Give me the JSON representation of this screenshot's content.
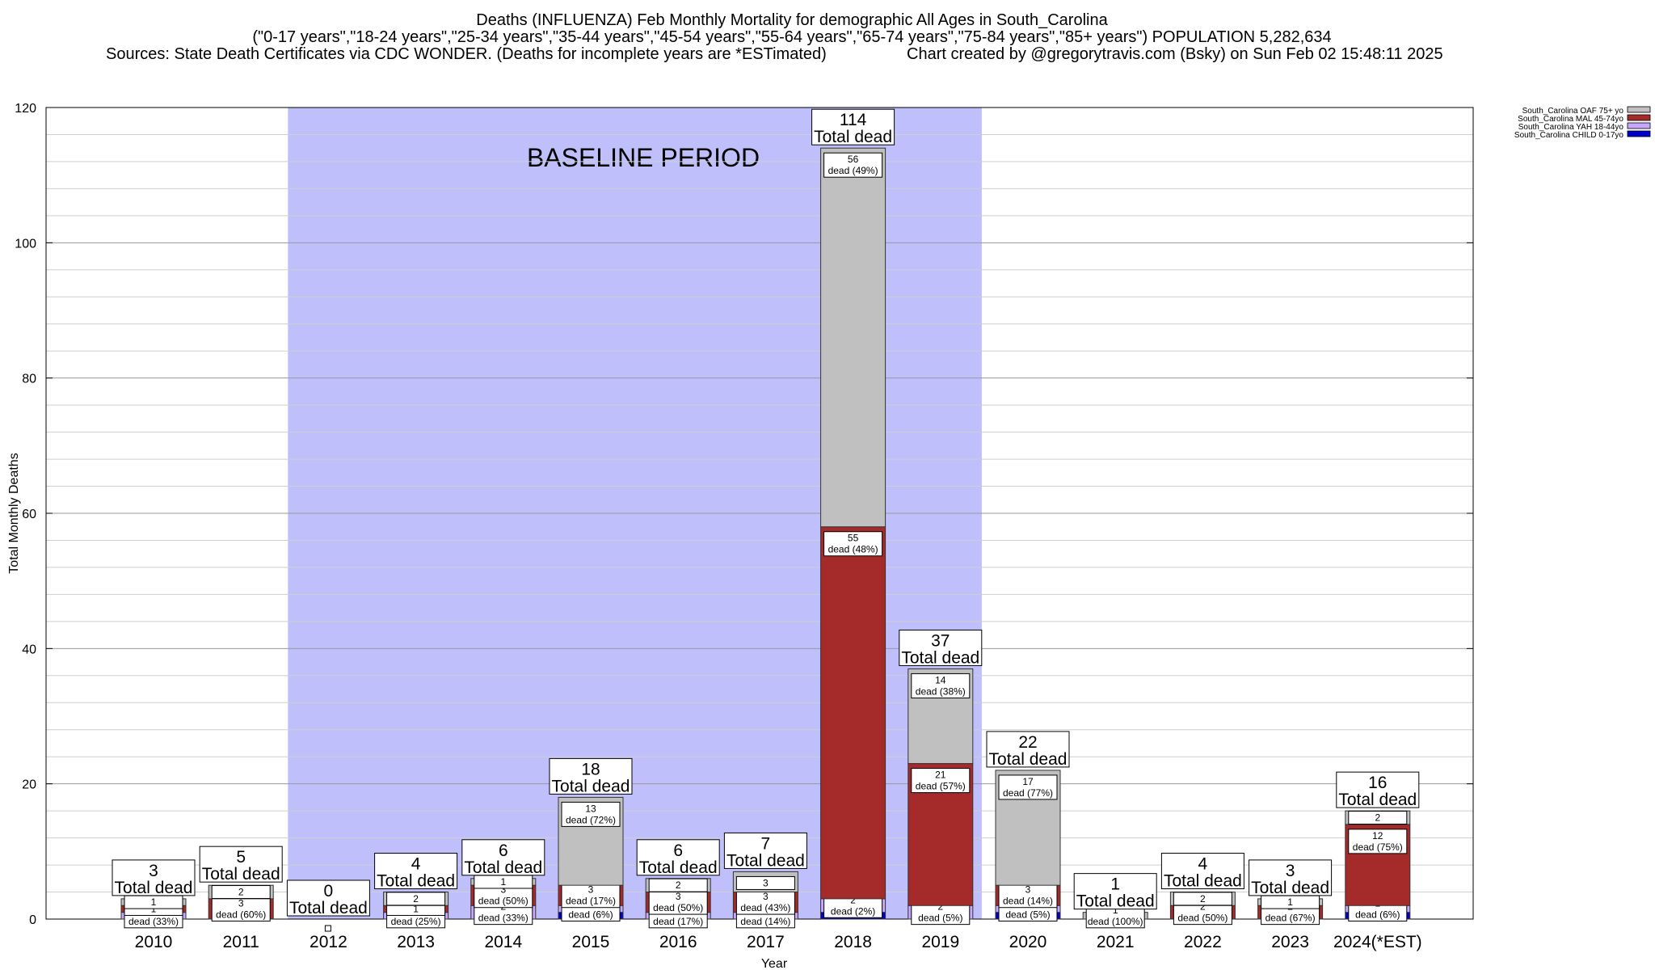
{
  "header": {
    "line1": "Deaths (INFLUENZA) Feb Monthly Mortality for demographic All Ages in South_Carolina",
    "line2": "(\"0-17 years\",\"18-24 years\",\"25-34 years\",\"35-44 years\",\"45-54 years\",\"55-64 years\",\"65-74 years\",\"75-84 years\",\"85+ years\") POPULATION 5,282,634",
    "line3_left": "Sources: State Death Certificates via CDC WONDER. (Deaths for incomplete years are *ESTimated)",
    "line3_right": "Chart created by @gregorytravis.com (Bsky) on Sun Feb 02 15:48:11 2025"
  },
  "chart_data": {
    "type": "bar",
    "stacked": true,
    "xlabel": "Year",
    "ylabel": "Total Monthly Deaths",
    "ylim": [
      0,
      120
    ],
    "yticks": [
      0,
      20,
      40,
      60,
      80,
      100,
      120
    ],
    "grid": true,
    "legend_position": "top-right",
    "baseline": {
      "label": "BASELINE PERIOD",
      "from": "2012",
      "to": "2019"
    },
    "total_label": "Total dead",
    "dead_word": "dead",
    "categories": [
      "2010",
      "2011",
      "2012",
      "2013",
      "2014",
      "2015",
      "2016",
      "2017",
      "2018",
      "2019",
      "2020",
      "2021",
      "2022",
      "2023",
      "2024(*EST)"
    ],
    "totals": [
      3,
      5,
      0,
      4,
      6,
      18,
      6,
      7,
      114,
      37,
      22,
      1,
      4,
      3,
      16
    ],
    "series": [
      {
        "name": "South_Carolina OAF 75+ yo",
        "color": "#c0c0c0",
        "values": [
          1,
          2,
          0,
          2,
          1,
          13,
          2,
          3,
          56,
          14,
          17,
          1,
          2,
          1,
          2
        ],
        "pct": [
          null,
          null,
          null,
          null,
          null,
          "72%",
          null,
          null,
          "49%",
          "38%",
          "77%",
          "100%",
          null,
          null,
          null
        ]
      },
      {
        "name": "South_Carolina MAL 45-74yo",
        "color": "#a52a2a",
        "values": [
          1,
          3,
          0,
          1,
          3,
          3,
          3,
          3,
          55,
          21,
          3,
          0,
          2,
          2,
          12
        ],
        "pct": [
          null,
          "60%",
          null,
          null,
          "50%",
          "17%",
          "50%",
          "43%",
          "48%",
          "57%",
          "14%",
          null,
          "50%",
          "67%",
          "75%"
        ]
      },
      {
        "name": "South_Carolina YAH 18-44yo",
        "color": "#c8a8ff",
        "values": [
          1,
          0,
          0,
          1,
          2,
          1,
          1,
          1,
          2,
          2,
          1,
          0,
          0,
          0,
          1
        ],
        "pct": [
          "33%",
          null,
          null,
          "25%",
          "33%",
          "6%",
          "17%",
          "14%",
          "2%",
          "5%",
          "5%",
          null,
          null,
          null,
          "6%"
        ]
      },
      {
        "name": "South_Carolina CHILD 0-17yo",
        "color": "#0000cc",
        "values": [
          0,
          0,
          0,
          0,
          0,
          1,
          0,
          0,
          1,
          0,
          1,
          0,
          0,
          0,
          1
        ],
        "pct": [
          null,
          null,
          null,
          null,
          null,
          null,
          null,
          null,
          null,
          null,
          null,
          null,
          null,
          null,
          null
        ]
      }
    ]
  }
}
